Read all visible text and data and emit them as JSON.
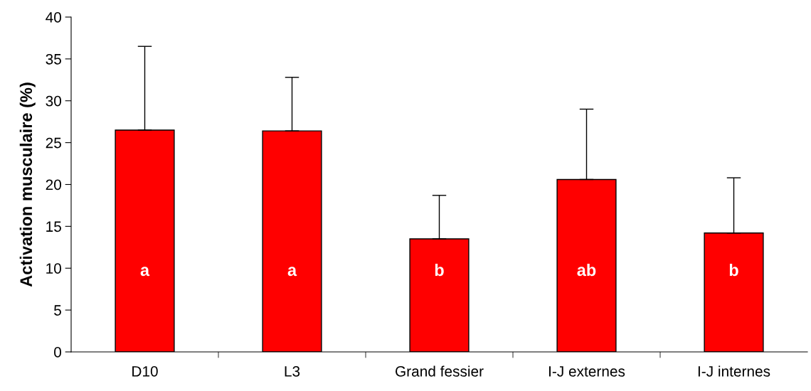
{
  "chart_data": {
    "type": "bar",
    "ylabel": "Activation musculaire (%)",
    "categories": [
      "D10",
      "L3",
      "Grand fessier",
      "I-J externes",
      "I-J internes"
    ],
    "values": [
      26.5,
      26.4,
      13.5,
      20.6,
      14.2
    ],
    "errors": [
      [
        26.5,
        36.5
      ],
      [
        26.4,
        32.8
      ],
      [
        13.5,
        18.7
      ],
      [
        20.6,
        29.0
      ],
      [
        14.2,
        20.8
      ]
    ],
    "color": "#ff0000",
    "ylim": [
      0,
      40
    ],
    "yticks": [
      0,
      5,
      10,
      15,
      20,
      25,
      30,
      35,
      40
    ],
    "grid": false,
    "legend": false,
    "annotations": [
      "a",
      "a",
      "b",
      "ab",
      "b"
    ]
  }
}
